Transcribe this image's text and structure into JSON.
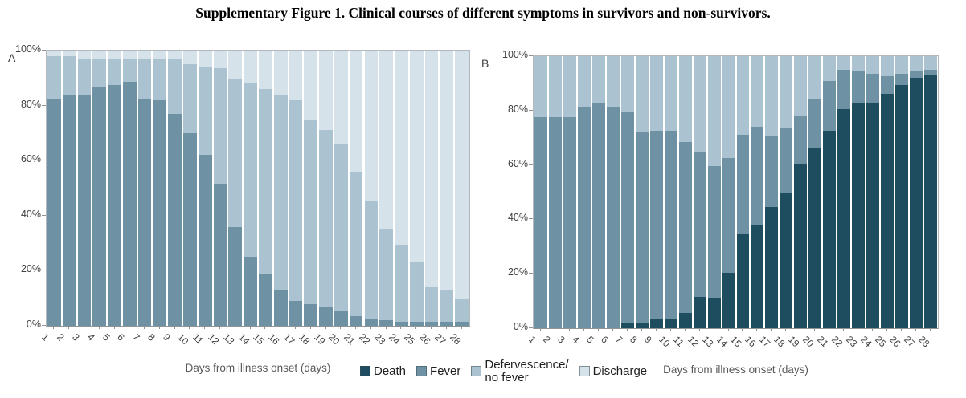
{
  "title": "Supplementary Figure 1. Clinical courses of different symptoms in survivors and non-survivors.",
  "legend": {
    "items": [
      {
        "label": "Death",
        "color": "#1e4d5f"
      },
      {
        "label": "Fever",
        "color": "#6e91a3"
      },
      {
        "label": "Defervescence/\nno fever",
        "color": "#abc3d0"
      },
      {
        "label": "Discharge",
        "color": "#d6e2ea"
      }
    ]
  },
  "chart_data": [
    {
      "id": "A",
      "type": "bar",
      "stacked": true,
      "panel_label": "A",
      "xlabel": "Days from illness onset (days)",
      "ylim": [
        0,
        100
      ],
      "yticks": [
        "0%",
        "20%",
        "40%",
        "60%",
        "80%",
        "100%"
      ],
      "legend_position": "bottom",
      "grid": false,
      "categories": [
        1,
        2,
        3,
        4,
        5,
        6,
        7,
        8,
        9,
        10,
        11,
        12,
        13,
        14,
        15,
        16,
        17,
        18,
        19,
        20,
        21,
        22,
        23,
        24,
        25,
        26,
        27,
        28
      ],
      "series": [
        {
          "name": "Death",
          "color": "#1e4d5f",
          "values": [
            0,
            0,
            0,
            0,
            0,
            0,
            0,
            0,
            0,
            0,
            0,
            0,
            0,
            0,
            0,
            0,
            0,
            0,
            0,
            0,
            0,
            0,
            0,
            0,
            0,
            0,
            0,
            0
          ]
        },
        {
          "name": "Fever",
          "color": "#6e91a3",
          "values": [
            82.5,
            84,
            84,
            87,
            87.5,
            88.5,
            82.5,
            82,
            77,
            70,
            62,
            51.5,
            36,
            25,
            19,
            13,
            9,
            8,
            7,
            5.5,
            3.5,
            2.5,
            2,
            1.5,
            1.5,
            1.5,
            1.5,
            1.5
          ]
        },
        {
          "name": "Defervescence/no fever",
          "color": "#abc3d0",
          "values": [
            15.5,
            14,
            13,
            10,
            9.5,
            8.5,
            14.5,
            15,
            20,
            25,
            32,
            42,
            53.5,
            63,
            67,
            71,
            73,
            67,
            64,
            60.5,
            52.5,
            43,
            33,
            28,
            21.5,
            12.5,
            11.5,
            8
          ]
        },
        {
          "name": "Discharge",
          "color": "#d6e2ea",
          "values": [
            2,
            2,
            3,
            3,
            3,
            3,
            3,
            3,
            3,
            5,
            6,
            6.5,
            10.5,
            12,
            14,
            16,
            18,
            25,
            29,
            34,
            44,
            54.5,
            65,
            70.5,
            77,
            86,
            87,
            90.5
          ]
        }
      ]
    },
    {
      "id": "B",
      "type": "bar",
      "stacked": true,
      "panel_label": "B",
      "xlabel": "Days from illness onset (days)",
      "ylim": [
        0,
        100
      ],
      "yticks": [
        "0%",
        "20%",
        "40%",
        "60%",
        "80%",
        "100%"
      ],
      "legend_position": "bottom",
      "grid": false,
      "categories": [
        1,
        2,
        3,
        4,
        5,
        6,
        7,
        8,
        9,
        10,
        11,
        12,
        13,
        14,
        15,
        16,
        17,
        18,
        19,
        20,
        21,
        22,
        23,
        24,
        25,
        26,
        27,
        28
      ],
      "series": [
        {
          "name": "Death",
          "color": "#1e4d5f",
          "values": [
            0,
            0,
            0,
            0,
            0,
            0,
            2,
            2,
            3.5,
            3.5,
            5.5,
            11.5,
            11,
            20.5,
            34.5,
            38,
            44.5,
            50,
            60.5,
            66,
            72.5,
            80.5,
            83,
            83,
            86,
            89.5,
            92,
            93
          ]
        },
        {
          "name": "Fever",
          "color": "#6e91a3",
          "values": [
            77.5,
            77.5,
            77.5,
            81.5,
            83,
            81.5,
            77.5,
            70,
            69,
            69,
            63,
            53.5,
            48.5,
            42,
            36.5,
            36,
            26,
            23.5,
            17.5,
            18,
            18.5,
            14.5,
            11.5,
            10.5,
            6.5,
            4,
            2.5,
            2
          ]
        },
        {
          "name": "Defervescence/no fever",
          "color": "#abc3d0",
          "values": [
            22.5,
            22.5,
            22.5,
            18.5,
            17,
            18.5,
            20.5,
            28,
            27.5,
            27.5,
            31.5,
            35,
            40.5,
            37.5,
            29,
            26,
            29.5,
            26.5,
            22,
            16,
            9,
            5,
            5.5,
            6.5,
            7.5,
            6.5,
            5.5,
            5
          ]
        },
        {
          "name": "Discharge",
          "color": "#d6e2ea",
          "values": [
            0,
            0,
            0,
            0,
            0,
            0,
            0,
            0,
            0,
            0,
            0,
            0,
            0,
            0,
            0,
            0,
            0,
            0,
            0,
            0,
            0,
            0,
            0,
            0,
            0,
            0,
            0,
            0
          ]
        }
      ]
    }
  ]
}
